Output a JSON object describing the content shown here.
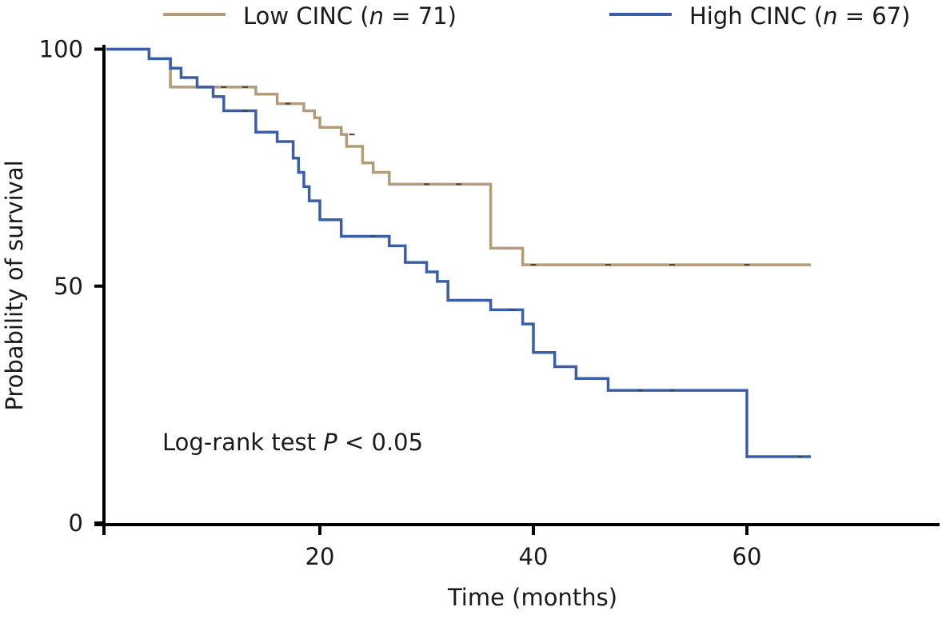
{
  "chart_data": {
    "type": "line",
    "subtype": "kaplan-meier",
    "xlabel": "Time (months)",
    "ylabel": "Probability of survival",
    "xlim": [
      0,
      78
    ],
    "ylim": [
      0,
      100
    ],
    "xticks": [
      20,
      40,
      60
    ],
    "xtick_labels": [
      "20",
      "40",
      "60"
    ],
    "yticks": [
      0,
      50,
      100
    ],
    "ytick_labels": [
      "0",
      "50",
      "100"
    ],
    "grid": false,
    "legend_position": "top",
    "annotation": {
      "prefix": "Log-rank test ",
      "p": "P",
      "suffix": " < 0.05"
    },
    "series": [
      {
        "name": "Low CINC (n = 71)",
        "legend_prefix": "Low CINC (",
        "legend_italic": "n",
        "legend_suffix": " = 71)",
        "color": "#b59c78",
        "x": [
          0,
          4,
          6,
          14,
          16,
          18.5,
          19.5,
          20,
          22,
          22.5,
          24,
          25,
          26.5,
          36,
          39,
          66
        ],
        "y": [
          100,
          98,
          92,
          90.5,
          88.5,
          87,
          85.5,
          83.5,
          82,
          79.5,
          76,
          74,
          71.5,
          58,
          54.5,
          54.5
        ],
        "censored_x": [
          11,
          13,
          17,
          23,
          30,
          33,
          40,
          47,
          53,
          60
        ],
        "censored_y": [
          92,
          92,
          88.5,
          82,
          71.5,
          71.5,
          54.5,
          54.5,
          54.5,
          54.5
        ]
      },
      {
        "name": "High CINC (n = 67)",
        "legend_prefix": "High CINC (",
        "legend_italic": "n",
        "legend_suffix": " = 67)",
        "color": "#3a5fa8",
        "x": [
          0,
          4,
          6,
          7,
          8.5,
          10,
          11,
          14,
          16,
          17.5,
          18,
          18.5,
          19,
          20,
          22,
          26.5,
          28,
          30,
          31,
          32,
          36,
          39,
          40,
          42,
          44,
          47,
          60,
          66
        ],
        "y": [
          100,
          98,
          96,
          94,
          92,
          90,
          87,
          82.5,
          80.5,
          77,
          74,
          71,
          68,
          64,
          60.5,
          58.5,
          55,
          53,
          51,
          47,
          45,
          42,
          36,
          33,
          30.5,
          28,
          14,
          14
        ],
        "censored_x": [
          13,
          25,
          38,
          50,
          53,
          65
        ],
        "censored_y": [
          87,
          60.5,
          45,
          28,
          28,
          14
        ]
      }
    ]
  }
}
